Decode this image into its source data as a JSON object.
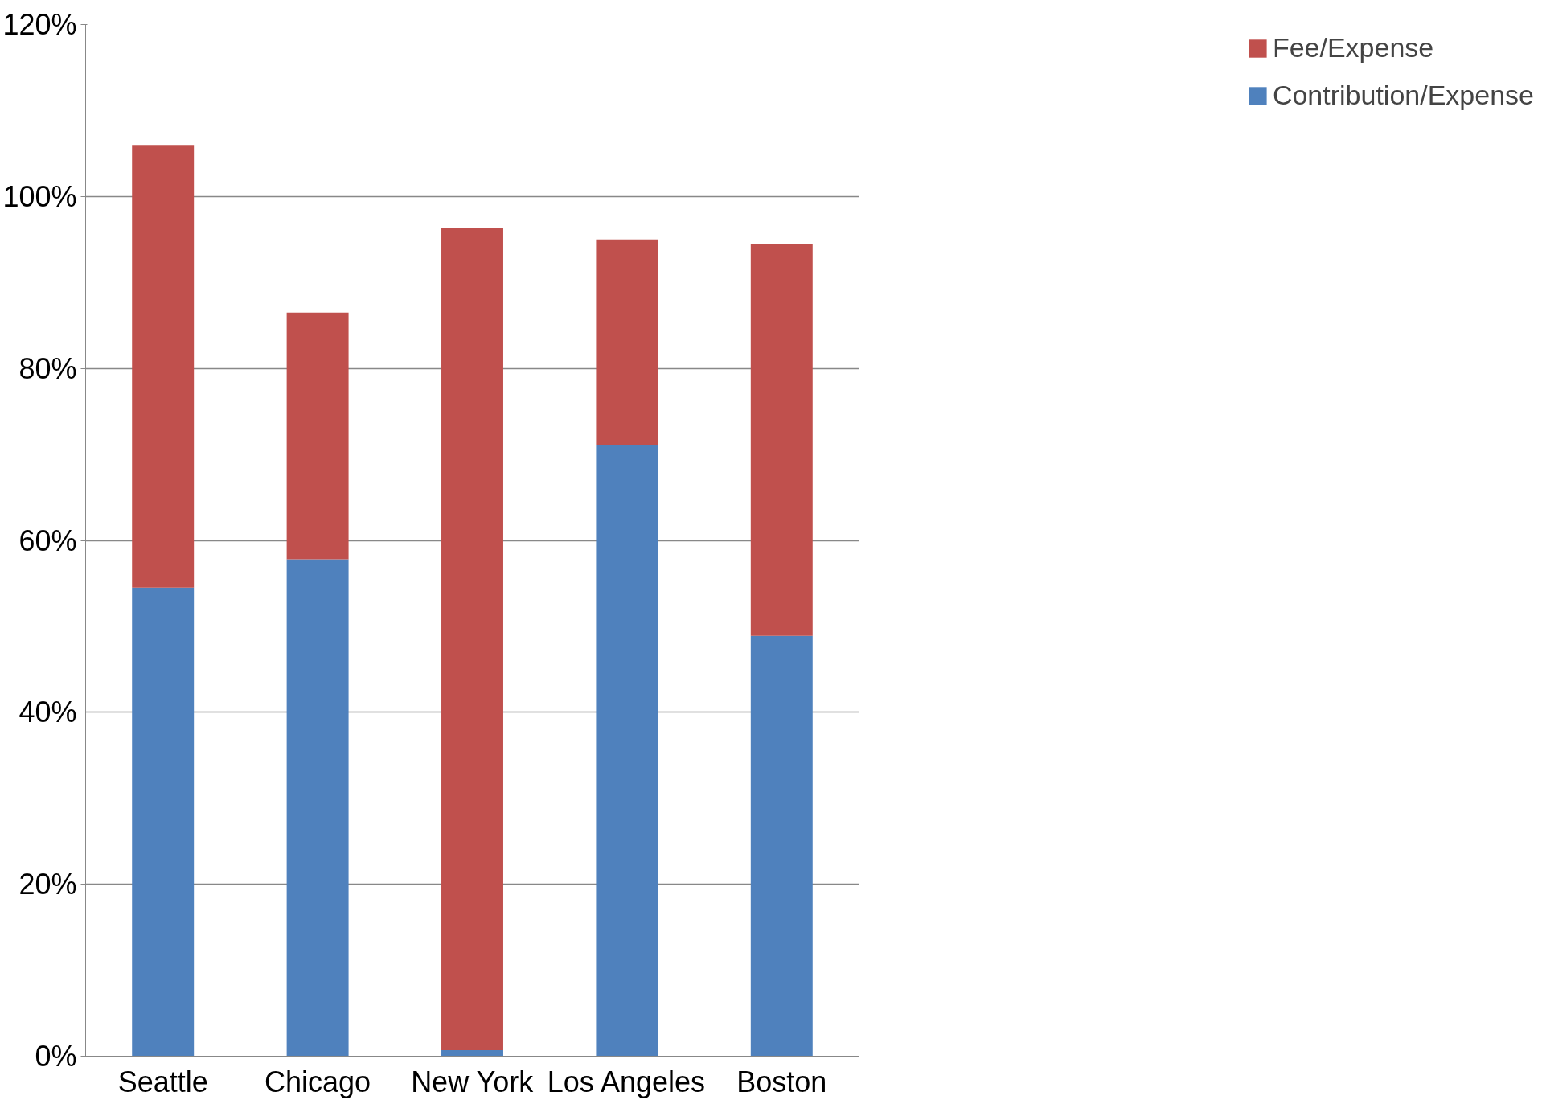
{
  "chart_data": {
    "type": "bar",
    "stacked": true,
    "categories": [
      "Seattle",
      "Chicago",
      "New York",
      "Los Angeles",
      "Boston"
    ],
    "series": [
      {
        "name": "Contribution/Expense",
        "color": "#4f81bd",
        "values": [
          54.5,
          57.8,
          0.7,
          71.1,
          48.9
        ]
      },
      {
        "name": "Fee/Expense",
        "color": "#c0504d",
        "values": [
          51.5,
          28.7,
          95.6,
          23.9,
          45.6
        ]
      }
    ],
    "ylim": [
      0,
      120
    ],
    "yticks": [
      {
        "value": 0,
        "label": "0%"
      },
      {
        "value": 20,
        "label": "20%"
      },
      {
        "value": 40,
        "label": "40%"
      },
      {
        "value": 60,
        "label": "60%"
      },
      {
        "value": 80,
        "label": "80%"
      },
      {
        "value": 100,
        "label": "100%"
      },
      {
        "value": 120,
        "label": "120%"
      }
    ],
    "grid": "y",
    "legend": "right"
  }
}
